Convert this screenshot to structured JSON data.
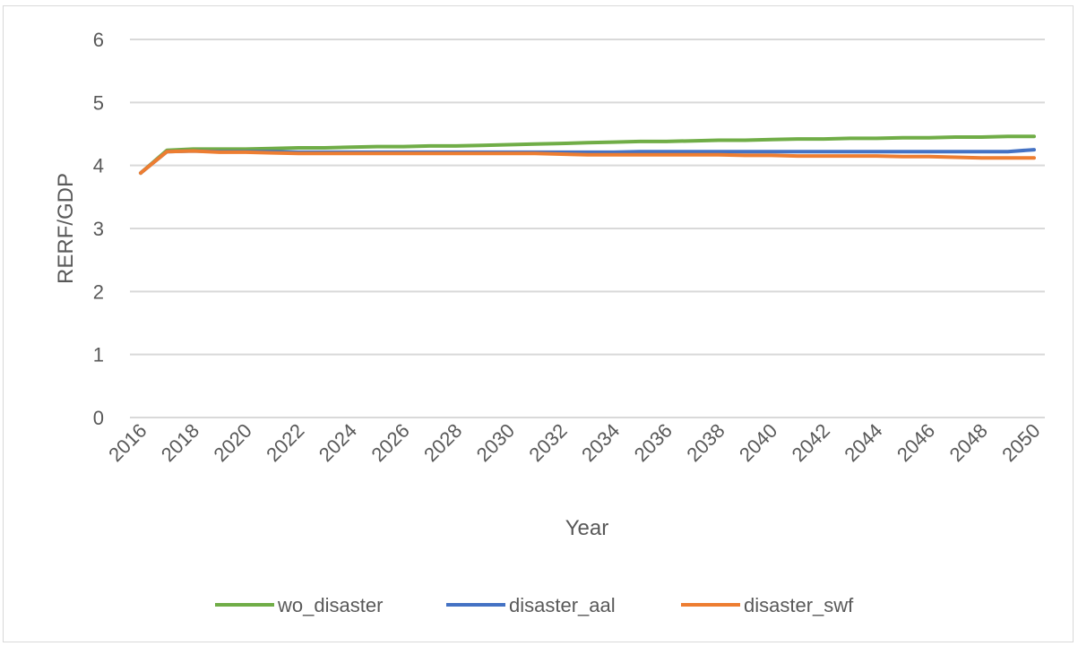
{
  "chart_data": {
    "type": "line",
    "title": "",
    "xlabel": "Year",
    "ylabel": "RERF/GDP",
    "ylim": [
      0,
      6
    ],
    "yticks": [
      0,
      1,
      2,
      3,
      4,
      5,
      6
    ],
    "x": [
      2016,
      2017,
      2018,
      2019,
      2020,
      2021,
      2022,
      2023,
      2024,
      2025,
      2026,
      2027,
      2028,
      2029,
      2030,
      2031,
      2032,
      2033,
      2034,
      2035,
      2036,
      2037,
      2038,
      2039,
      2040,
      2041,
      2042,
      2043,
      2044,
      2045,
      2046,
      2047,
      2048,
      2049,
      2050
    ],
    "xtick_labels": [
      "2016",
      "2018",
      "2020",
      "2022",
      "2024",
      "2026",
      "2028",
      "2030",
      "2032",
      "2034",
      "2036",
      "2038",
      "2040",
      "2042",
      "2044",
      "2046",
      "2048",
      "2050"
    ],
    "grid": "horizontal",
    "legend_position": "bottom",
    "series": [
      {
        "name": "wo_disaster",
        "color": "#70ad47",
        "values": [
          3.88,
          4.24,
          4.26,
          4.26,
          4.26,
          4.27,
          4.28,
          4.28,
          4.29,
          4.3,
          4.3,
          4.31,
          4.31,
          4.32,
          4.33,
          4.34,
          4.35,
          4.36,
          4.37,
          4.38,
          4.38,
          4.39,
          4.4,
          4.4,
          4.41,
          4.42,
          4.42,
          4.43,
          4.43,
          4.44,
          4.44,
          4.45,
          4.45,
          4.46,
          4.46
        ]
      },
      {
        "name": "disaster_aal",
        "color": "#4472c4",
        "values": [
          3.88,
          4.22,
          4.23,
          4.22,
          4.22,
          4.22,
          4.21,
          4.21,
          4.21,
          4.21,
          4.21,
          4.21,
          4.21,
          4.21,
          4.21,
          4.21,
          4.21,
          4.21,
          4.21,
          4.22,
          4.22,
          4.22,
          4.22,
          4.22,
          4.22,
          4.22,
          4.22,
          4.22,
          4.22,
          4.22,
          4.22,
          4.22,
          4.22,
          4.22,
          4.25
        ]
      },
      {
        "name": "disaster_swf",
        "color": "#ed7d31",
        "values": [
          3.88,
          4.22,
          4.23,
          4.21,
          4.21,
          4.2,
          4.19,
          4.19,
          4.19,
          4.19,
          4.19,
          4.19,
          4.19,
          4.19,
          4.19,
          4.19,
          4.18,
          4.17,
          4.17,
          4.17,
          4.17,
          4.17,
          4.17,
          4.16,
          4.16,
          4.15,
          4.15,
          4.15,
          4.15,
          4.14,
          4.14,
          4.13,
          4.12,
          4.12,
          4.12
        ]
      }
    ]
  }
}
